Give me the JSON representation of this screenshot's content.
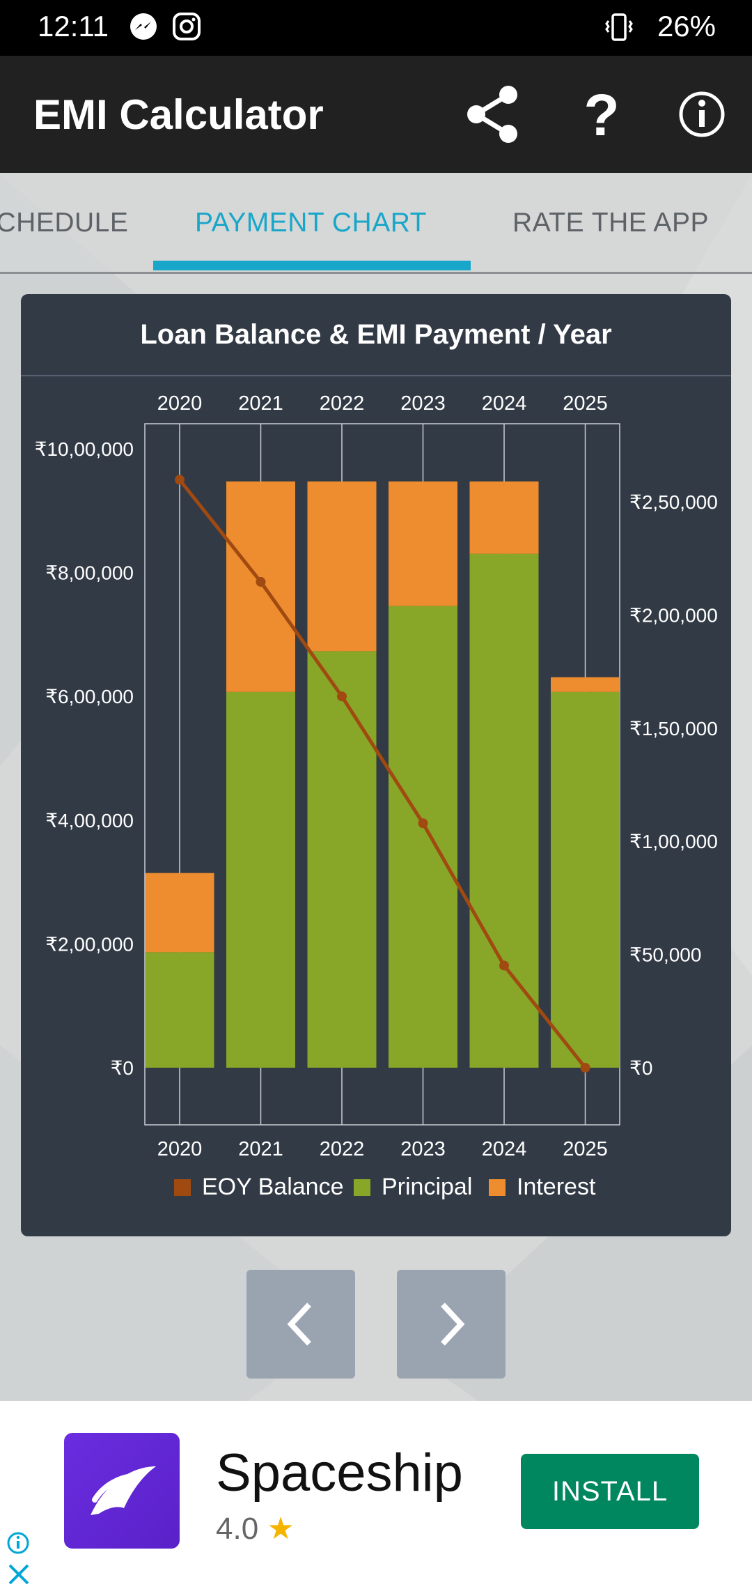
{
  "status_bar": {
    "time": "12:11",
    "battery": "26%"
  },
  "app_bar": {
    "title": "EMI Calculator"
  },
  "tabs": [
    {
      "label": "SCHEDULE"
    },
    {
      "label": "PAYMENT CHART"
    },
    {
      "label": "RATE THE APP"
    }
  ],
  "card": {
    "title": "Loan Balance & EMI Payment / Year"
  },
  "chart_data": {
    "type": "bar",
    "title": "Loan Balance & EMI Payment / Year",
    "categories": [
      "2020",
      "2021",
      "2022",
      "2023",
      "2024",
      "2025"
    ],
    "left_axis": {
      "ticks": [
        "₹0",
        "₹2,00,000",
        "₹4,00,000",
        "₹6,00,000",
        "₹8,00,000",
        "₹10,00,000"
      ],
      "values": [
        0,
        200000,
        400000,
        600000,
        800000,
        1000000
      ],
      "range": [
        0,
        1000000
      ]
    },
    "right_axis": {
      "ticks": [
        "₹0",
        "₹50,000",
        "₹1,00,000",
        "₹1,50,000",
        "₹2,00,000",
        "₹2,50,000"
      ],
      "values": [
        0,
        50000,
        100000,
        150000,
        200000,
        250000
      ],
      "range": [
        0,
        274000
      ]
    },
    "series": [
      {
        "name": "EOY Balance",
        "axis": "left",
        "kind": "line",
        "color": "#a04a12",
        "values": [
          950000,
          785000,
          600000,
          395000,
          165000,
          0
        ]
      },
      {
        "name": "Principal",
        "axis": "right",
        "kind": "stacked-bar",
        "color": "#88a627",
        "values": [
          51000,
          166000,
          184000,
          204000,
          227000,
          166000
        ]
      },
      {
        "name": "Interest",
        "axis": "right",
        "kind": "stacked-bar",
        "color": "#ee8d2f",
        "values": [
          35000,
          93000,
          75000,
          55000,
          32000,
          6500
        ]
      }
    ],
    "legend_position": "bottom"
  },
  "nav": {
    "prev_icon": "chevron-left",
    "next_icon": "chevron-right"
  },
  "ad": {
    "app_name": "Spaceship",
    "rating": "4.0",
    "install_label": "INSTALL"
  }
}
